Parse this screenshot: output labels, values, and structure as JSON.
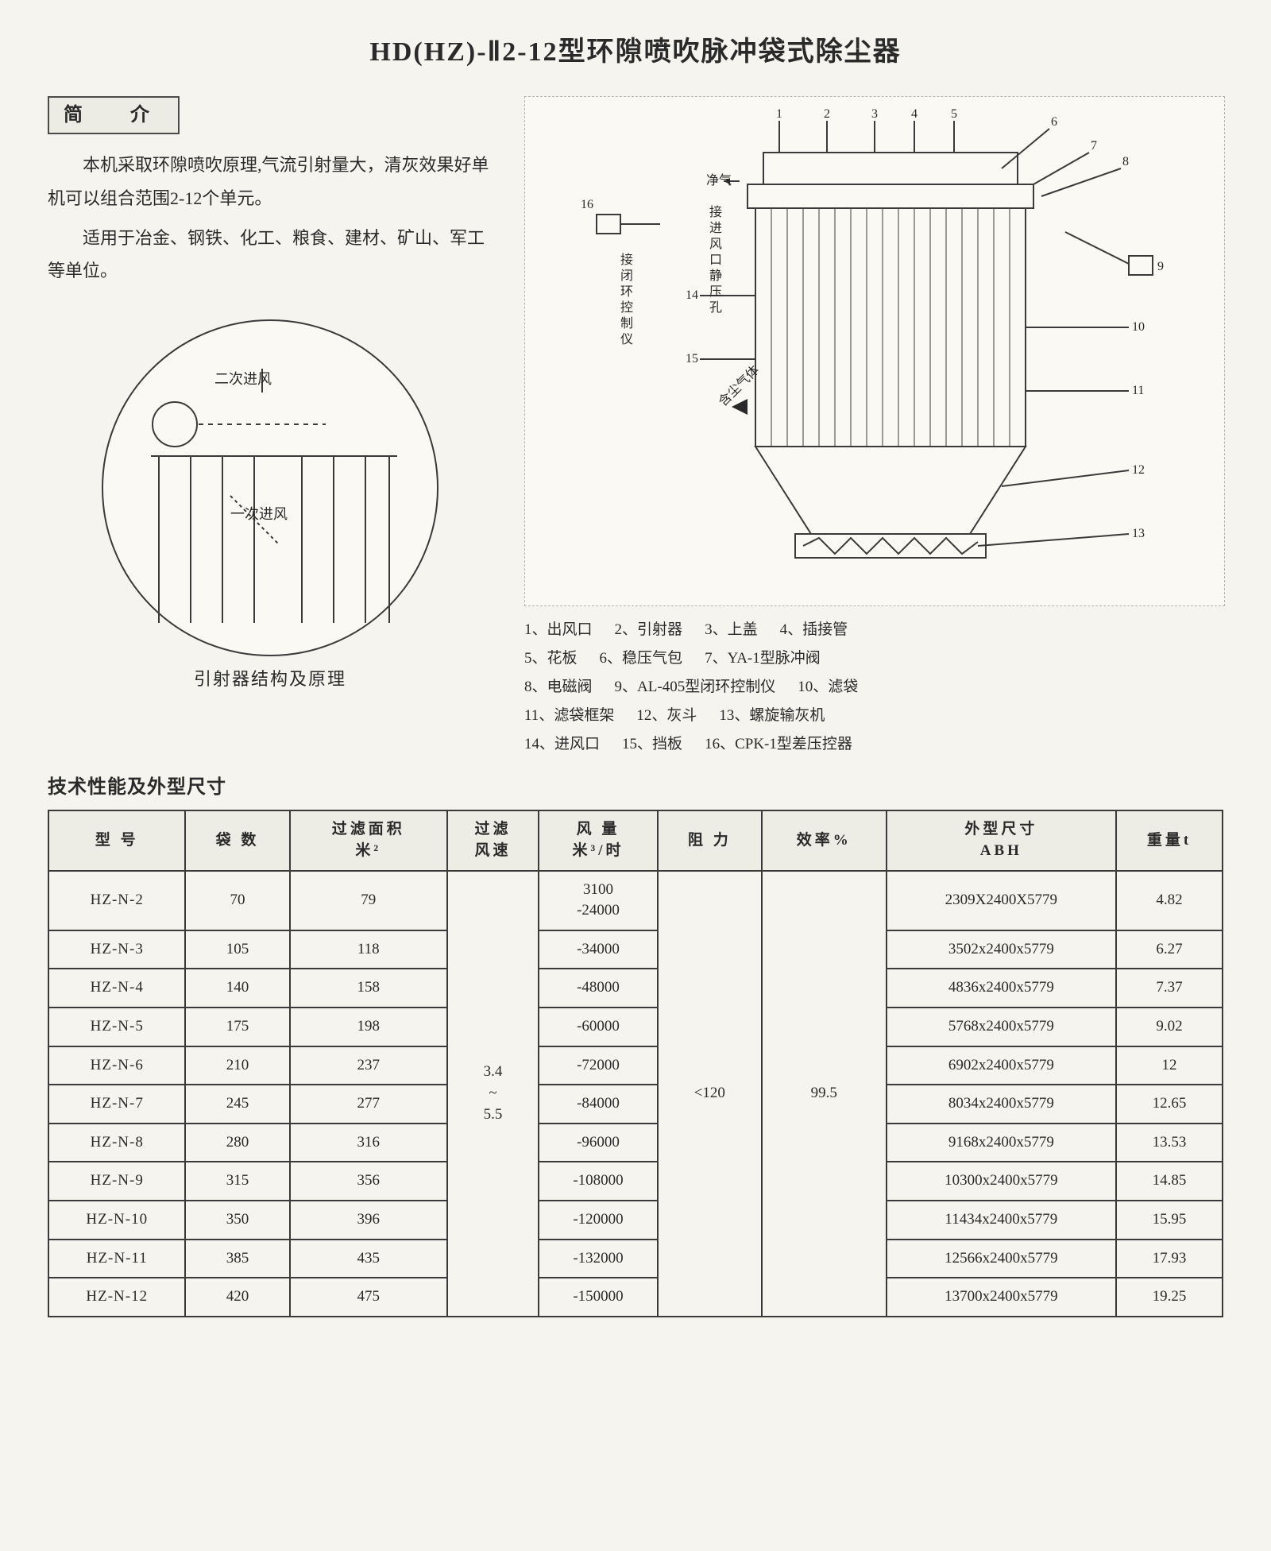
{
  "title": "HD(HZ)-Ⅱ2-12型环隙喷吹脉冲袋式除尘器",
  "section_intro_label": "简　介",
  "intro_paragraphs": [
    "本机采取环隙喷吹原理,气流引射量大，清灰效果好单机可以组合范围2-12个单元。",
    "适用于冶金、钢铁、化工、粮食、建材、矿山、军工等单位。"
  ],
  "circle_diagram_caption": "引射器结构及原理",
  "circle_inner_labels": {
    "secondary_air": "二次进风",
    "primary_air": "一次进风"
  },
  "main_diagram_placeholder": "〔设备结构示意图 — 带编号 1–16 的部件引线〕",
  "main_diagram_side_labels": {
    "clean_gas": "净气",
    "inlet_static": "接进风口静压孔",
    "controller": "接闭环控制仪",
    "dust_gas": "含尘气体"
  },
  "parts_legend": [
    {
      "n": "1",
      "t": "出风口"
    },
    {
      "n": "2",
      "t": "引射器"
    },
    {
      "n": "3",
      "t": "上盖"
    },
    {
      "n": "4",
      "t": "插接管"
    },
    {
      "n": "5",
      "t": "花板"
    },
    {
      "n": "6",
      "t": "稳压气包"
    },
    {
      "n": "7",
      "t": "YA-1型脉冲阀"
    },
    {
      "n": "8",
      "t": "电磁阀"
    },
    {
      "n": "9",
      "t": "AL-405型闭环控制仪"
    },
    {
      "n": "10",
      "t": "滤袋"
    },
    {
      "n": "11",
      "t": "滤袋框架"
    },
    {
      "n": "12",
      "t": "灰斗"
    },
    {
      "n": "13",
      "t": "螺旋输灰机"
    },
    {
      "n": "14",
      "t": "进风口"
    },
    {
      "n": "15",
      "t": "挡板"
    },
    {
      "n": "16",
      "t": "CPK-1型差压控器"
    }
  ],
  "table_title": "技术性能及外型尺寸",
  "table": {
    "columns": [
      "型 号",
      "袋 数",
      "过滤面积\n米²",
      "过滤\n风速",
      "风 量\n米³/时",
      "阻 力",
      "效率%",
      "外型尺寸\nABH",
      "重量t"
    ],
    "shared": {
      "filter_speed": "3.4\n~\n5.5",
      "resistance": "<120",
      "efficiency": "99.5"
    },
    "rows": [
      {
        "model": "HZ-N-2",
        "bags": "70",
        "area": "79",
        "airflow": "3100\n-24000",
        "dim": "2309X2400X5779",
        "weight": "4.82"
      },
      {
        "model": "HZ-N-3",
        "bags": "105",
        "area": "118",
        "airflow": "-34000",
        "dim": "3502x2400x5779",
        "weight": "6.27"
      },
      {
        "model": "HZ-N-4",
        "bags": "140",
        "area": "158",
        "airflow": "-48000",
        "dim": "4836x2400x5779",
        "weight": "7.37"
      },
      {
        "model": "HZ-N-5",
        "bags": "175",
        "area": "198",
        "airflow": "-60000",
        "dim": "5768x2400x5779",
        "weight": "9.02"
      },
      {
        "model": "HZ-N-6",
        "bags": "210",
        "area": "237",
        "airflow": "-72000",
        "dim": "6902x2400x5779",
        "weight": "12"
      },
      {
        "model": "HZ-N-7",
        "bags": "245",
        "area": "277",
        "airflow": "-84000",
        "dim": "8034x2400x5779",
        "weight": "12.65"
      },
      {
        "model": "HZ-N-8",
        "bags": "280",
        "area": "316",
        "airflow": "-96000",
        "dim": "9168x2400x5779",
        "weight": "13.53"
      },
      {
        "model": "HZ-N-9",
        "bags": "315",
        "area": "356",
        "airflow": "-108000",
        "dim": "10300x2400x5779",
        "weight": "14.85"
      },
      {
        "model": "HZ-N-10",
        "bags": "350",
        "area": "396",
        "airflow": "-120000",
        "dim": "11434x2400x5779",
        "weight": "15.95"
      },
      {
        "model": "HZ-N-11",
        "bags": "385",
        "area": "435",
        "airflow": "-132000",
        "dim": "12566x2400x5779",
        "weight": "17.93"
      },
      {
        "model": "HZ-N-12",
        "bags": "420",
        "area": "475",
        "airflow": "-150000",
        "dim": "13700x2400x5779",
        "weight": "19.25"
      }
    ]
  }
}
